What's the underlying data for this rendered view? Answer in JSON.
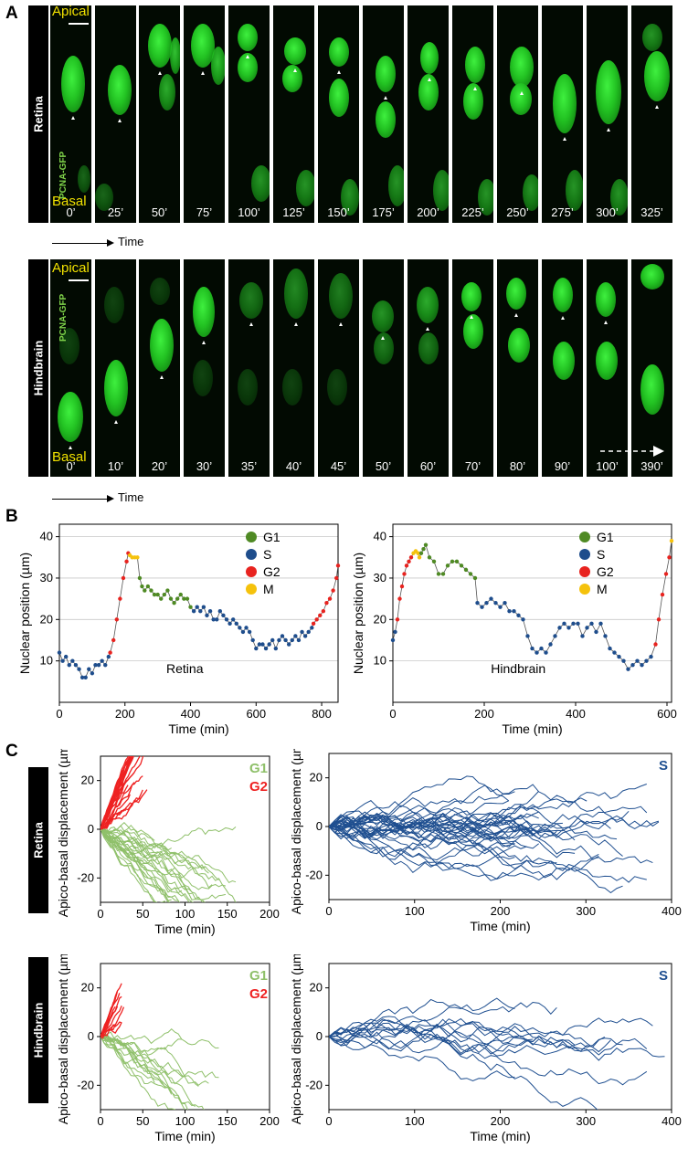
{
  "panels": {
    "a": "A",
    "b": "B",
    "c": "C"
  },
  "retina_label": "Retina",
  "hindbrain_label": "Hindbrain",
  "apical": "Apical",
  "basal": "Basal",
  "pcna": "PCNA-GFP",
  "time": "Time",
  "retina_times": [
    "0’",
    "25’",
    "50’",
    "75’",
    "100’",
    "125’",
    "150’",
    "175’",
    "200’",
    "225’",
    "250’",
    "275’",
    "300’",
    "325’"
  ],
  "hindbrain_times": [
    "0’",
    "10’",
    "20’",
    "30’",
    "35’",
    "40’",
    "45’",
    "50’",
    "60’",
    "70’",
    "80’",
    "90’",
    "100’",
    "390’"
  ],
  "colors": {
    "G1": "#4f8a24",
    "S": "#1e4d8c",
    "G2": "#e8231f",
    "M": "#f5c20c",
    "G1_light": "#8fc06a",
    "G2_line": "#ee2222",
    "S_line": "#1f4f90"
  },
  "chart_data": [
    {
      "type": "scatter",
      "title": "Retina",
      "xlabel": "Time (min)",
      "ylabel": "Nuclear position (µm)",
      "xlim": [
        0,
        850
      ],
      "ylim": [
        0,
        43
      ],
      "xticks": [
        0,
        200,
        400,
        600,
        800
      ],
      "yticks": [
        10,
        20,
        30,
        40
      ],
      "legend": [
        "G1",
        "S",
        "G2",
        "M"
      ],
      "legend_position": "top-right",
      "series": [
        {
          "name": "S",
          "x": [
            0,
            10,
            20,
            30,
            40,
            50,
            60,
            70,
            80,
            90,
            100,
            110,
            120,
            130,
            140,
            150
          ],
          "y": [
            12,
            10,
            11,
            9,
            10,
            9,
            8,
            6,
            6,
            8,
            7,
            9,
            9,
            10,
            9,
            11
          ]
        },
        {
          "name": "G2",
          "x": [
            155,
            165,
            175,
            185,
            195,
            205,
            210
          ],
          "y": [
            12,
            15,
            20,
            25,
            30,
            34,
            36
          ]
        },
        {
          "name": "M",
          "x": [
            215,
            222,
            230,
            238
          ],
          "y": [
            35.5,
            35,
            35,
            35
          ]
        },
        {
          "name": "G1",
          "x": [
            245,
            252,
            260,
            270,
            280,
            290,
            300,
            310,
            320,
            330,
            340,
            350,
            360,
            370,
            380,
            390,
            400
          ],
          "y": [
            30,
            28,
            27,
            28,
            27,
            26,
            26,
            25,
            26,
            27,
            25,
            24,
            25,
            26,
            25,
            25,
            23
          ]
        },
        {
          "name": "S",
          "x": [
            410,
            420,
            430,
            440,
            450,
            460,
            470,
            480,
            490,
            500,
            510,
            520,
            530,
            540,
            550,
            560,
            570,
            580,
            590,
            600,
            610,
            620,
            630,
            640,
            650,
            660,
            670,
            680,
            690,
            700,
            710,
            720,
            730,
            740,
            750,
            760,
            770
          ],
          "y": [
            22,
            23,
            22,
            23,
            21,
            22,
            20,
            20,
            22,
            21,
            20,
            19,
            20,
            19,
            18,
            17,
            18,
            17,
            15,
            13,
            14,
            14,
            13,
            14,
            15,
            13,
            15,
            16,
            15,
            14,
            15,
            16,
            15,
            17,
            16,
            17,
            18
          ]
        },
        {
          "name": "G2",
          "x": [
            775,
            785,
            795,
            805,
            815,
            825,
            835,
            845,
            850
          ],
          "y": [
            19,
            20,
            21,
            22,
            24,
            25,
            27,
            30,
            33
          ]
        }
      ]
    },
    {
      "type": "scatter",
      "title": "Hindbrain",
      "xlabel": "Time (min)",
      "ylabel": "Nuclear position (µm)",
      "xlim": [
        0,
        610
      ],
      "ylim": [
        0,
        43
      ],
      "xticks": [
        0,
        200,
        400,
        600
      ],
      "yticks": [
        10,
        20,
        30,
        40
      ],
      "legend": [
        "G1",
        "S",
        "G2",
        "M"
      ],
      "legend_position": "top-right",
      "series": [
        {
          "name": "S",
          "x": [
            0,
            5
          ],
          "y": [
            15,
            17
          ]
        },
        {
          "name": "G2",
          "x": [
            10,
            15,
            20,
            25,
            30,
            35,
            40
          ],
          "y": [
            20,
            25,
            28,
            31,
            33,
            34,
            35
          ]
        },
        {
          "name": "M",
          "x": [
            45,
            50,
            55,
            58
          ],
          "y": [
            36,
            36.5,
            36,
            35
          ]
        },
        {
          "name": "G1",
          "x": [
            62,
            67,
            72,
            80,
            90,
            100,
            110,
            120,
            130,
            140,
            150,
            160,
            170,
            180
          ],
          "y": [
            36,
            37,
            38,
            35,
            34,
            31,
            31,
            33,
            34,
            34,
            33,
            32,
            31,
            30
          ]
        },
        {
          "name": "S",
          "x": [
            185,
            195,
            205,
            215,
            225,
            235,
            245,
            255,
            265,
            275,
            285,
            295,
            305,
            315,
            325,
            335,
            345,
            355,
            365,
            375,
            385,
            395,
            405,
            415,
            425,
            435,
            445,
            455,
            465,
            475,
            485,
            495,
            505,
            515,
            525,
            535,
            545,
            555,
            565
          ],
          "y": [
            24,
            23,
            24,
            25,
            24,
            23,
            24,
            22,
            22,
            21,
            20,
            16,
            13,
            12,
            13,
            12,
            14,
            16,
            18,
            19,
            18,
            19,
            19,
            16,
            18,
            19,
            17,
            19,
            16,
            13,
            12,
            11,
            10,
            8,
            9,
            10,
            9,
            10,
            11
          ]
        },
        {
          "name": "G2",
          "x": [
            575,
            582,
            590,
            598,
            605
          ],
          "y": [
            14,
            20,
            26,
            31,
            35
          ]
        },
        {
          "name": "M",
          "x": [
            610
          ],
          "y": [
            39
          ]
        }
      ]
    },
    {
      "type": "line",
      "title": "",
      "xlabel": "Time (min)",
      "ylabel": "Apico-basal displacement (µm)",
      "xlim": [
        0,
        200
      ],
      "ylim": [
        -30,
        30
      ],
      "xticks": [
        0,
        50,
        100,
        150,
        200
      ],
      "yticks": [
        -20,
        0,
        20
      ],
      "legend": [
        "G1",
        "G2"
      ],
      "legend_position": "top-right",
      "series": [
        {
          "name": "G2",
          "end_points": [
            [
              40,
              20
            ],
            [
              60,
              25
            ],
            [
              80,
              10
            ],
            [
              50,
              15
            ],
            [
              30,
              22
            ],
            [
              90,
              5
            ],
            [
              45,
              12
            ],
            [
              25,
              18
            ]
          ]
        },
        {
          "name": "G1",
          "end_points": [
            [
              200,
              -6
            ],
            [
              150,
              -28
            ],
            [
              120,
              -20
            ],
            [
              100,
              -12
            ],
            [
              180,
              -8
            ],
            [
              80,
              -18
            ],
            [
              140,
              -5
            ],
            [
              60,
              -22
            ]
          ]
        }
      ]
    },
    {
      "type": "line",
      "title": "",
      "xlabel": "Time (min)",
      "ylabel": "Apico-basal displacement (µm)",
      "xlim": [
        0,
        400
      ],
      "ylim": [
        -30,
        30
      ],
      "xticks": [
        0,
        100,
        200,
        300,
        400
      ],
      "yticks": [
        -20,
        0,
        20
      ],
      "legend": [
        "S"
      ],
      "legend_position": "top-right",
      "series": [
        {
          "name": "S",
          "end_points": [
            [
              270,
              18
            ],
            [
              400,
              -12
            ],
            [
              390,
              -22
            ],
            [
              350,
              8
            ],
            [
              300,
              -18
            ],
            [
              250,
              -25
            ],
            [
              380,
              -5
            ]
          ]
        }
      ]
    },
    {
      "type": "line",
      "title": "",
      "xlabel": "Time (min)",
      "ylabel": "Apico-basal displacement (µm)",
      "xlim": [
        0,
        200
      ],
      "ylim": [
        -30,
        30
      ],
      "xticks": [
        0,
        50,
        100,
        150,
        200
      ],
      "yticks": [
        -20,
        0,
        20
      ],
      "legend": [
        "G1",
        "G2"
      ],
      "legend_position": "top-right",
      "series": [
        {
          "name": "G2",
          "end_points": [
            [
              25,
              22
            ],
            [
              30,
              15
            ],
            [
              20,
              18
            ],
            [
              28,
              10
            ]
          ]
        },
        {
          "name": "G1",
          "end_points": [
            [
              140,
              -10
            ],
            [
              80,
              -23
            ],
            [
              110,
              -8
            ],
            [
              130,
              -5
            ]
          ]
        }
      ]
    },
    {
      "type": "line",
      "title": "",
      "xlabel": "Time (min)",
      "ylabel": "Apico-basal displacement (µm)",
      "xlim": [
        0,
        400
      ],
      "ylim": [
        -30,
        30
      ],
      "xticks": [
        0,
        100,
        200,
        300,
        400
      ],
      "yticks": [
        -20,
        0,
        20
      ],
      "legend": [
        "S"
      ],
      "legend_position": "top-right",
      "series": [
        {
          "name": "S",
          "end_points": [
            [
              280,
              5
            ],
            [
              400,
              -5
            ],
            [
              380,
              -12
            ],
            [
              320,
              2
            ],
            [
              260,
              -8
            ]
          ]
        }
      ]
    }
  ]
}
